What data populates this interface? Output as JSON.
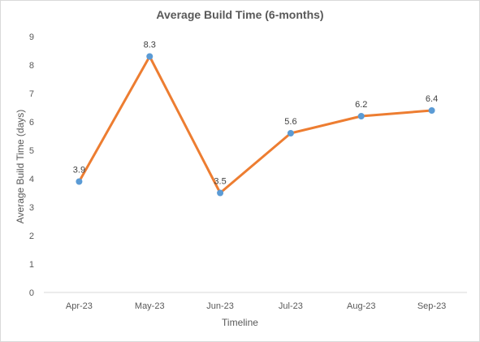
{
  "chart_data": {
    "type": "line",
    "title": "Average Build Time (6-months)",
    "xlabel": "Timeline",
    "ylabel": "Average Build Time (days)",
    "categories": [
      "Apr-23",
      "May-23",
      "Jun-23",
      "Jul-23",
      "Aug-23",
      "Sep-23"
    ],
    "series": [
      {
        "values": [
          3.9,
          8.3,
          3.5,
          5.6,
          6.2,
          6.4
        ],
        "color": "#ed7d31",
        "marker_color": "#5b9bd5"
      }
    ],
    "data_labels": [
      "3.9",
      "8.3",
      "3.5",
      "5.6",
      "6.2",
      "6.4"
    ],
    "ylim": [
      0,
      9
    ],
    "y_ticks": [
      "0",
      "1",
      "2",
      "3",
      "4",
      "5",
      "6",
      "7",
      "8",
      "9"
    ],
    "grid": false,
    "legend": "none"
  }
}
